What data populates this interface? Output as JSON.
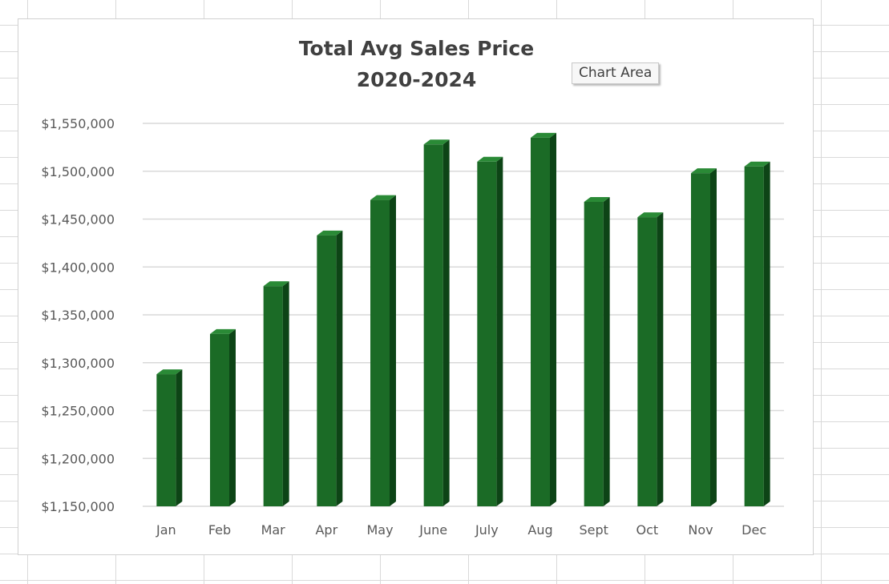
{
  "tooltip": "Chart Area",
  "colors": {
    "bar_front": "#1b6b26",
    "bar_side": "#0d4416",
    "bar_top": "#2a8a36",
    "gridline": "#d9d9d9",
    "axis_text": "#595959",
    "title_text": "#404040"
  },
  "chart_data": {
    "type": "bar",
    "title": "Total Avg Sales Price",
    "subtitle": "2020-2024",
    "xlabel": "",
    "ylabel": "",
    "ylim": [
      1150000,
      1550000
    ],
    "yticks": [
      1150000,
      1200000,
      1250000,
      1300000,
      1350000,
      1400000,
      1450000,
      1500000,
      1550000
    ],
    "ytick_labels": [
      "$1,150,000",
      "$1,200,000",
      "$1,250,000",
      "$1,300,000",
      "$1,350,000",
      "$1,400,000",
      "$1,450,000",
      "$1,500,000",
      "$1,550,000"
    ],
    "grid": true,
    "categories": [
      "Jan",
      "Feb",
      "Mar",
      "Apr",
      "May",
      "June",
      "July",
      "Aug",
      "Sept",
      "Oct",
      "Nov",
      "Dec"
    ],
    "values": [
      1288000,
      1330000,
      1380000,
      1433000,
      1470000,
      1528000,
      1510000,
      1535000,
      1468000,
      1452000,
      1498000,
      1505000
    ]
  }
}
